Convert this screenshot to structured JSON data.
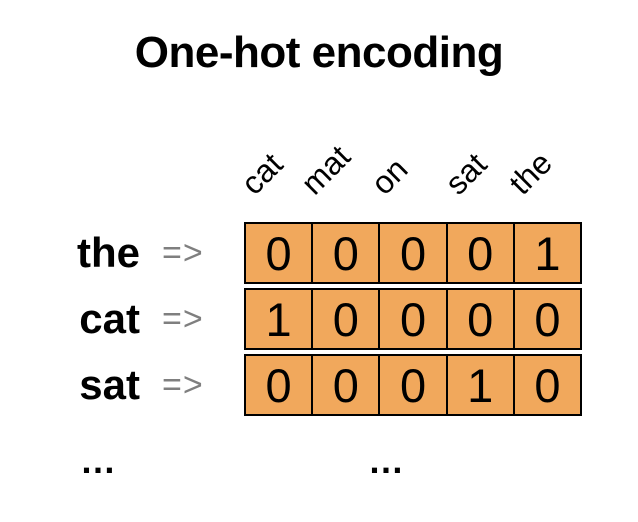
{
  "title": "One-hot encoding",
  "columns": [
    "cat",
    "mat",
    "on",
    "sat",
    "the"
  ],
  "rows": [
    {
      "word": "the",
      "arrow": "=>",
      "vector": [
        "0",
        "0",
        "0",
        "0",
        "1"
      ]
    },
    {
      "word": "cat",
      "arrow": "=>",
      "vector": [
        "1",
        "0",
        "0",
        "0",
        "0"
      ]
    },
    {
      "word": "sat",
      "arrow": "=>",
      "vector": [
        "0",
        "0",
        "0",
        "1",
        "0"
      ]
    }
  ],
  "ellipsis": {
    "left": "…",
    "right": "…"
  },
  "colors": {
    "cell_fill": "#f1a85c",
    "cell_border": "#000000",
    "arrow_gray": "#7f7f7f",
    "text": "#000000",
    "background": "#ffffff"
  }
}
